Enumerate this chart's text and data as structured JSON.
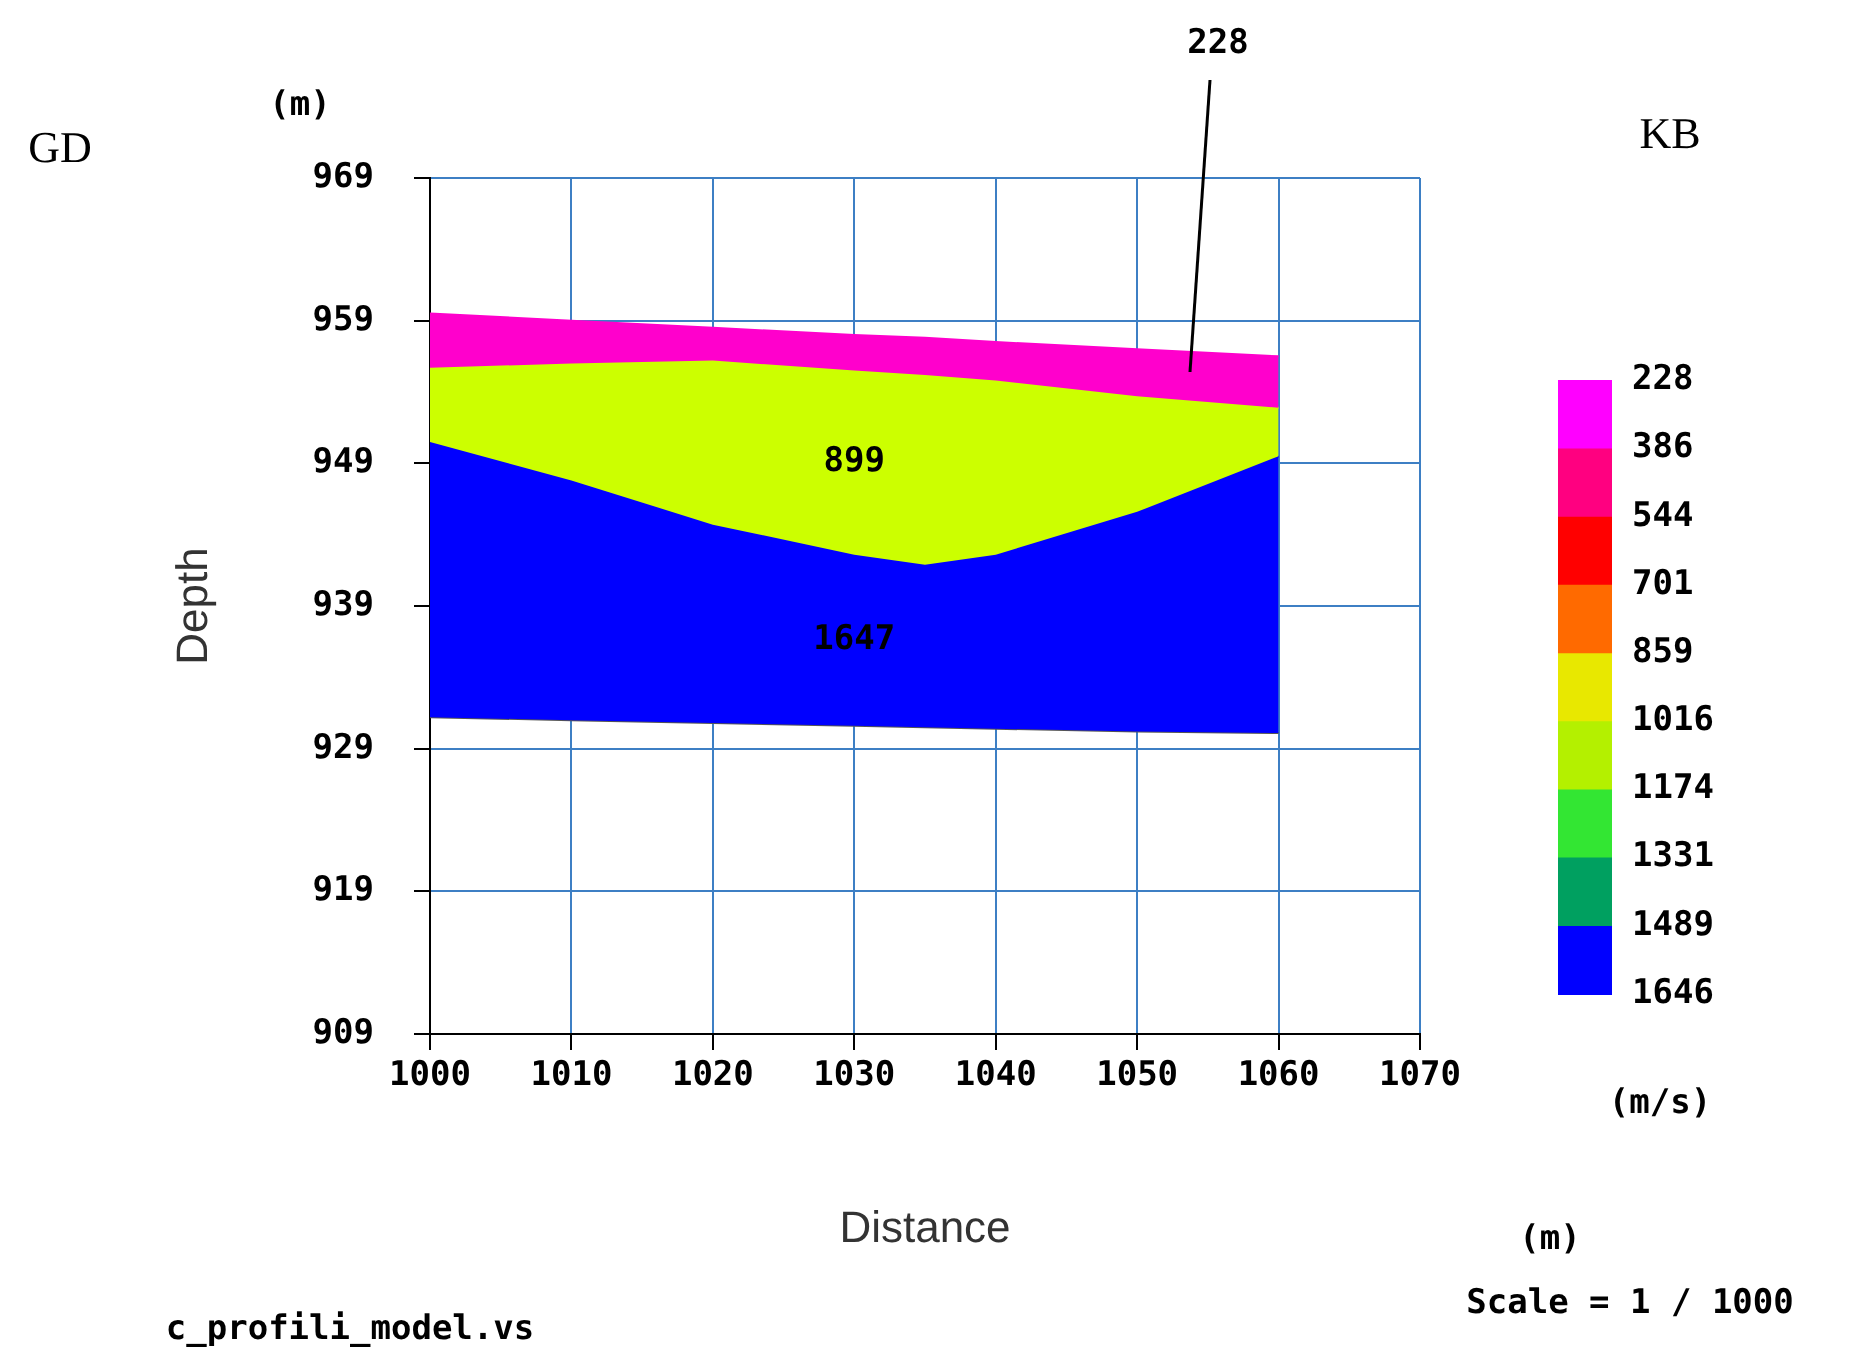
{
  "chart_data": {
    "type": "area",
    "xlabel": "Distance",
    "ylabel": "Depth",
    "clabel": "(m/s)",
    "x": [
      1000,
      1010,
      1020,
      1030,
      1035,
      1040,
      1050,
      1060
    ],
    "series": [
      {
        "color": "#ff00cc",
        "values": [
          959.5,
          959,
          958.5,
          958,
          957.8,
          957.5,
          957,
          956.5
        ]
      },
      {
        "name": "899",
        "color": "#ccff00",
        "values": [
          955.7,
          956,
          956.2,
          955.5,
          955.2,
          954.8,
          953.7,
          952.9
        ]
      },
      {
        "name": "1647",
        "color": "#0000ff",
        "values": [
          950.5,
          947.8,
          944.7,
          942.6,
          941.9,
          942.6,
          945.6,
          949.5
        ]
      },
      {
        "type": "line",
        "color": "#555555",
        "values": [
          931.2,
          931,
          930.8,
          930.6,
          930.5,
          930.4,
          930.2,
          930.1
        ]
      }
    ],
    "xlim": [
      1000,
      1070
    ],
    "xticks": [
      1000,
      1010,
      1020,
      1030,
      1040,
      1050,
      1060,
      1070
    ],
    "ylim": [
      909,
      969
    ],
    "yticks": [
      909,
      919,
      929,
      939,
      949,
      959,
      969
    ],
    "clim": [
      228,
      1646
    ],
    "cticks": [
      228,
      386,
      544,
      701,
      859,
      1016,
      1174,
      1331,
      1489,
      1646
    ],
    "grid": true,
    "legend": false,
    "marker": "none",
    "annotations": [
      "GD",
      "KB",
      "(m)",
      "(m)",
      "c_profili_model.vs",
      "Scale = 1 / 1000",
      "228"
    ]
  }
}
